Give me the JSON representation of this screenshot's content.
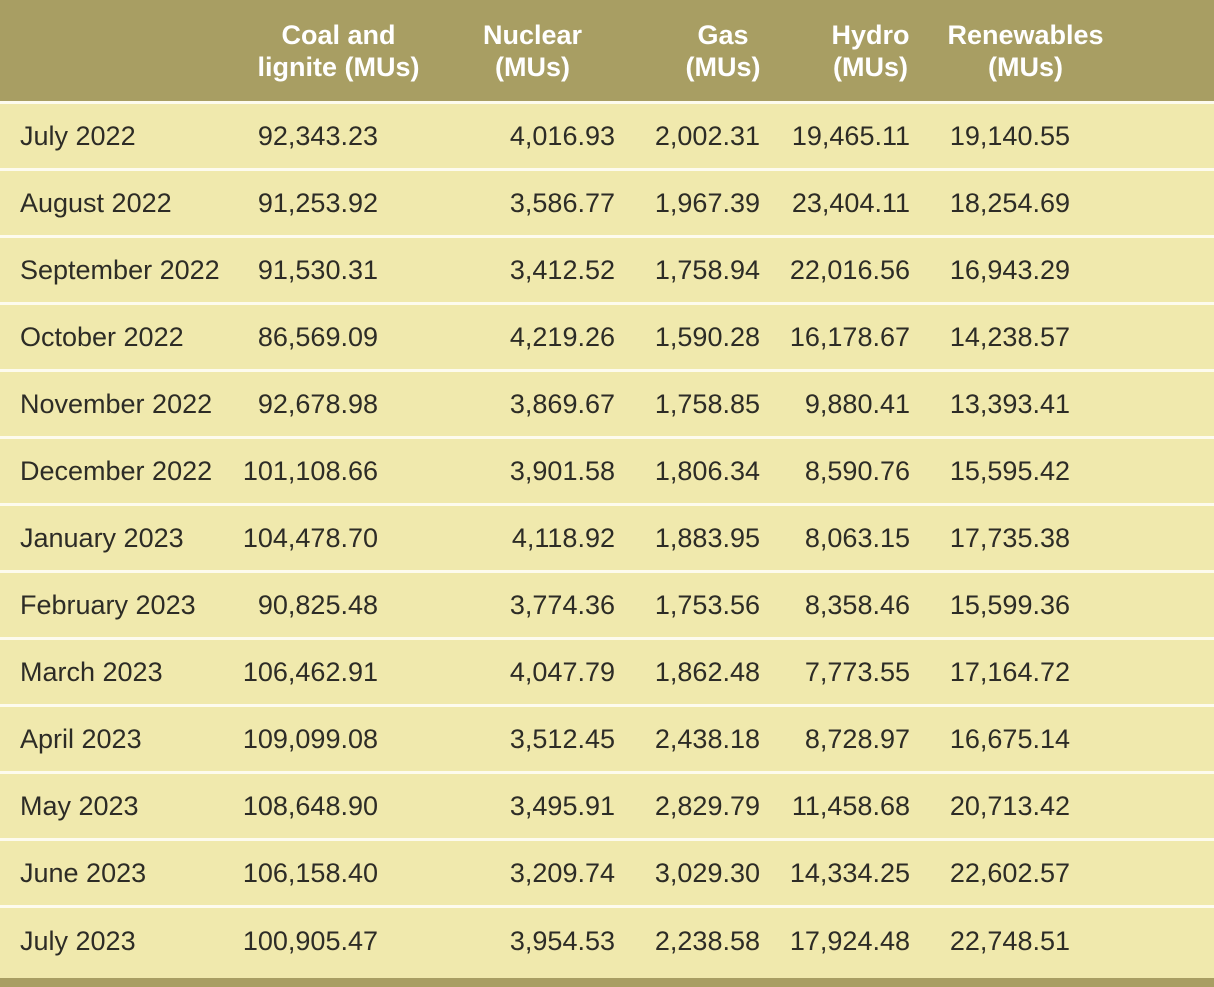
{
  "colors": {
    "header_bg": "#a89e63",
    "row_bg": "#f0e9ad",
    "separator": "#fdfbee",
    "header_text": "#ffffff",
    "body_text": "#2d2c26",
    "footer_bar": "#a89e63"
  },
  "table": {
    "header": {
      "columns": [
        {
          "line1": "Coal and",
          "line2": "lignite (MUs)"
        },
        {
          "line1": "Nuclear",
          "line2": "(MUs)"
        },
        {
          "line1": "Gas",
          "line2": "(MUs)"
        },
        {
          "line1": "Hydro",
          "line2": "(MUs)"
        },
        {
          "line1": "Renewables",
          "line2": "(MUs)"
        }
      ]
    },
    "rows": [
      {
        "month": "July 2022",
        "values": [
          "92,343.23",
          "4,016.93",
          "2,002.31",
          "19,465.11",
          "19,140.55"
        ]
      },
      {
        "month": "August 2022",
        "values": [
          "91,253.92",
          "3,586.77",
          "1,967.39",
          "23,404.11",
          "18,254.69"
        ]
      },
      {
        "month": "September 2022",
        "values": [
          "91,530.31",
          "3,412.52",
          "1,758.94",
          "22,016.56",
          "16,943.29"
        ]
      },
      {
        "month": "October 2022",
        "values": [
          "86,569.09",
          "4,219.26",
          "1,590.28",
          "16,178.67",
          "14,238.57"
        ]
      },
      {
        "month": "November 2022",
        "values": [
          "92,678.98",
          "3,869.67",
          "1,758.85",
          "9,880.41",
          "13,393.41"
        ]
      },
      {
        "month": "December 2022",
        "values": [
          "101,108.66",
          "3,901.58",
          "1,806.34",
          "8,590.76",
          "15,595.42"
        ]
      },
      {
        "month": "January 2023",
        "values": [
          "104,478.70",
          "4,118.92",
          "1,883.95",
          "8,063.15",
          "17,735.38"
        ]
      },
      {
        "month": "February 2023",
        "values": [
          "90,825.48",
          "3,774.36",
          "1,753.56",
          "8,358.46",
          "15,599.36"
        ]
      },
      {
        "month": "March 2023",
        "values": [
          "106,462.91",
          "4,047.79",
          "1,862.48",
          "7,773.55",
          "17,164.72"
        ]
      },
      {
        "month": "April 2023",
        "values": [
          "109,099.08",
          "3,512.45",
          "2,438.18",
          "8,728.97",
          "16,675.14"
        ]
      },
      {
        "month": "May 2023",
        "values": [
          "108,648.90",
          "3,495.91",
          "2,829.79",
          "11,458.68",
          "20,713.42"
        ]
      },
      {
        "month": "June 2023",
        "values": [
          "106,158.40",
          "3,209.74",
          "3,029.30",
          "14,334.25",
          "22,602.57"
        ]
      },
      {
        "month": "July 2023",
        "values": [
          "100,905.47",
          "3,954.53",
          "2,238.58",
          "17,924.48",
          "22,748.51"
        ]
      }
    ]
  },
  "chart_data": {
    "type": "table",
    "categories": [
      "July 2022",
      "August 2022",
      "September 2022",
      "October 2022",
      "November 2022",
      "December 2022",
      "January 2023",
      "February 2023",
      "March 2023",
      "April 2023",
      "May 2023",
      "June 2023",
      "July 2023"
    ],
    "series": [
      {
        "name": "Coal and lignite (MUs)",
        "values": [
          92343.23,
          91253.92,
          91530.31,
          86569.09,
          92678.98,
          101108.66,
          104478.7,
          90825.48,
          106462.91,
          109099.08,
          108648.9,
          106158.4,
          100905.47
        ]
      },
      {
        "name": "Nuclear (MUs)",
        "values": [
          4016.93,
          3586.77,
          3412.52,
          4219.26,
          3869.67,
          3901.58,
          4118.92,
          3774.36,
          4047.79,
          3512.45,
          3495.91,
          3209.74,
          3954.53
        ]
      },
      {
        "name": "Gas (MUs)",
        "values": [
          2002.31,
          1967.39,
          1758.94,
          1590.28,
          1758.85,
          1806.34,
          1883.95,
          1753.56,
          1862.48,
          2438.18,
          2829.79,
          3029.3,
          2238.58
        ]
      },
      {
        "name": "Hydro (MUs)",
        "values": [
          19465.11,
          23404.11,
          22016.56,
          16178.67,
          9880.41,
          8590.76,
          8063.15,
          8358.46,
          7773.55,
          8728.97,
          11458.68,
          14334.25,
          17924.48
        ]
      },
      {
        "name": "Renewables (MUs)",
        "values": [
          19140.55,
          18254.69,
          16943.29,
          14238.57,
          13393.41,
          15595.42,
          17735.38,
          15599.36,
          17164.72,
          16675.14,
          20713.42,
          22602.57,
          22748.51
        ]
      }
    ]
  }
}
